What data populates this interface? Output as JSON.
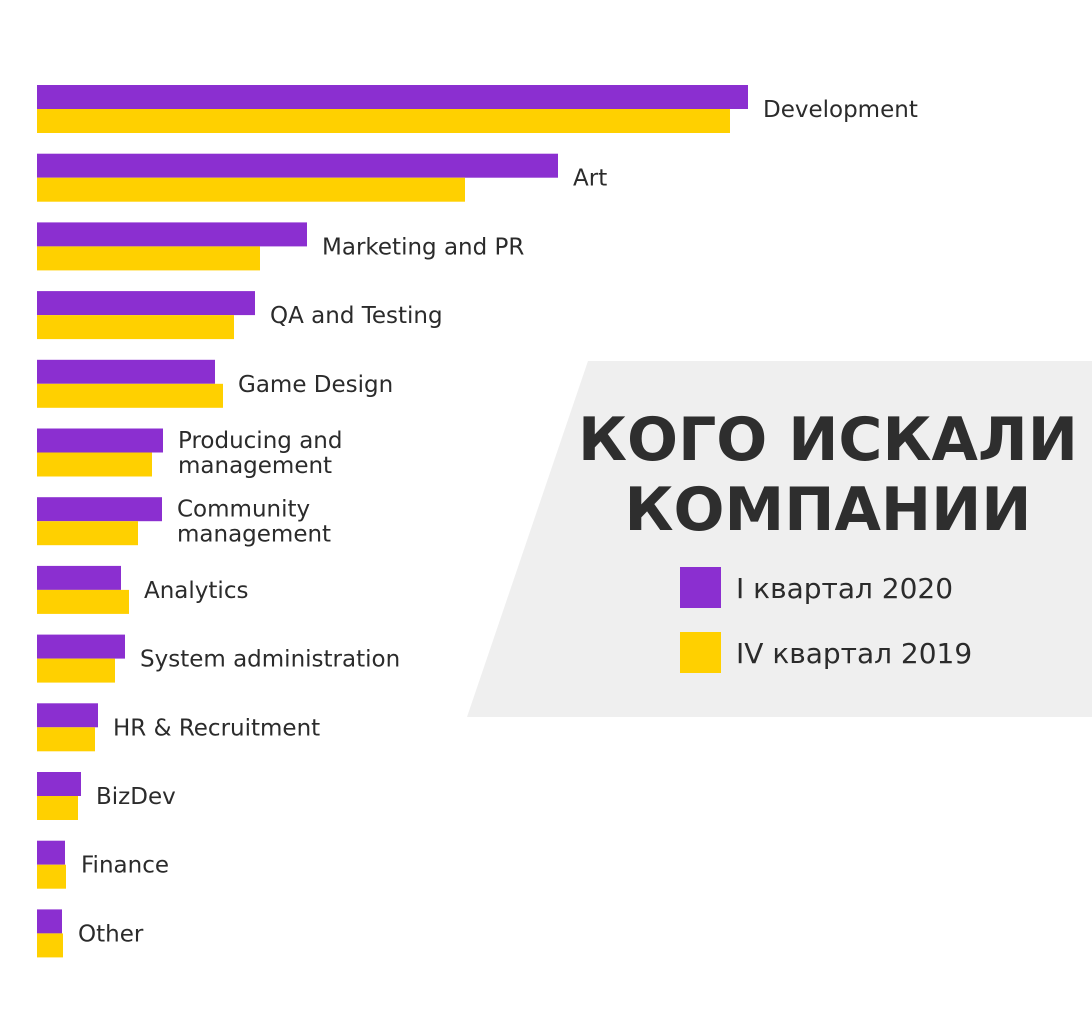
{
  "chart_data": {
    "type": "bar",
    "orientation": "horizontal",
    "title": "КОГО ИСКАЛИ КОМПАНИИ",
    "title_lines": [
      "КОГО ИСКАЛИ",
      "КОМПАНИИ"
    ],
    "categories": [
      "Development",
      "Art",
      "Marketing and PR",
      "QA and Testing",
      "Game Design",
      "Producing and management",
      "Community management",
      "Analytics",
      "System administration",
      "HR & Recruitment",
      "BizDev",
      "Finance",
      "Other"
    ],
    "category_label_lines": [
      [
        "Development"
      ],
      [
        "Art"
      ],
      [
        "Marketing and PR"
      ],
      [
        "QA and Testing"
      ],
      [
        "Game Design"
      ],
      [
        "Producing and",
        "management"
      ],
      [
        "Community",
        "management"
      ],
      [
        "Analytics"
      ],
      [
        "System administration"
      ],
      [
        "HR & Recruitment"
      ],
      [
        "BizDev"
      ],
      [
        "Finance"
      ],
      [
        "Other"
      ]
    ],
    "series": [
      {
        "name": "I квартал 2020",
        "color": "#8b2fd0",
        "values": [
          711,
          521,
          270,
          218,
          178,
          126,
          125,
          84,
          88,
          61,
          44,
          28,
          25
        ]
      },
      {
        "name": "IV квартал 2019",
        "color": "#ffd000",
        "values": [
          693,
          428,
          223,
          197,
          186,
          115,
          101,
          92,
          78,
          58,
          41,
          29,
          26
        ]
      }
    ],
    "xlim": [
      0,
      750
    ],
    "grid": false,
    "axes_visible": false,
    "legend_position": "right",
    "panel_color": "#efefef"
  }
}
